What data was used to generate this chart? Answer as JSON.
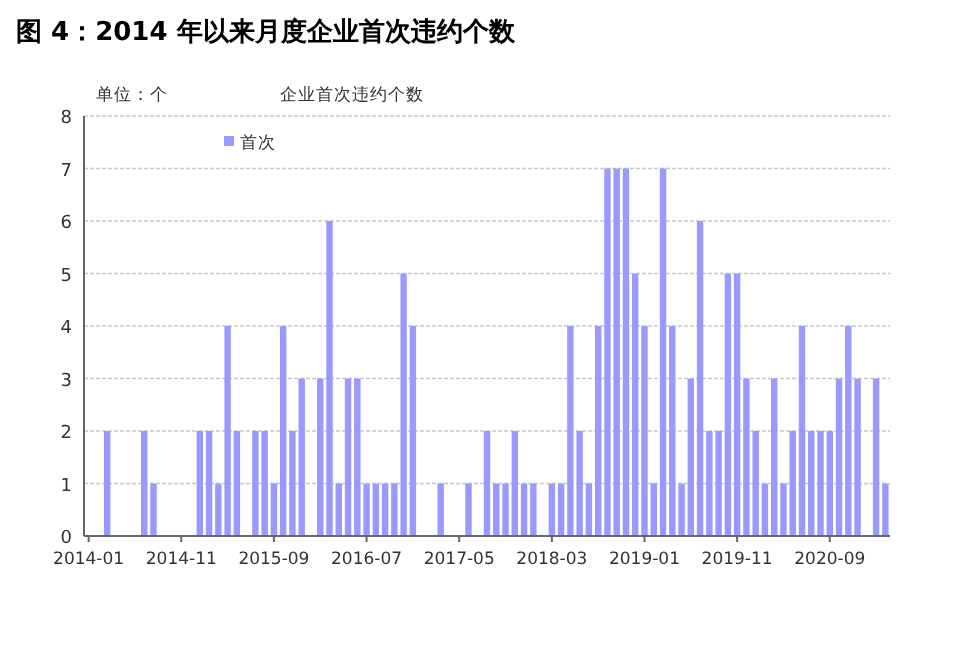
{
  "chart_data": {
    "type": "bar",
    "title": "图 4：2014 年以来月度企业首次违约个数",
    "subtitle": "企业首次违约个数",
    "ylabel": "单位：个",
    "categories": [
      "2014-01",
      null,
      null,
      null,
      null,
      null,
      null,
      null,
      null,
      null,
      "2014-11",
      null,
      null,
      null,
      null,
      null,
      null,
      null,
      null,
      null,
      "2015-09",
      null,
      null,
      null,
      null,
      null,
      null,
      null,
      null,
      null,
      "2016-07",
      null,
      null,
      null,
      null,
      null,
      null,
      null,
      null,
      null,
      "2017-05",
      null,
      null,
      null,
      null,
      null,
      null,
      null,
      null,
      null,
      "2018-03",
      null,
      null,
      null,
      null,
      null,
      null,
      null,
      null,
      null,
      "2019-01",
      null,
      null,
      null,
      null,
      null,
      null,
      null,
      null,
      null,
      "2019-11",
      null,
      null,
      null,
      null,
      null,
      null,
      null,
      null,
      null,
      "2020-09",
      null,
      null,
      null,
      null,
      null,
      null
    ],
    "series": [
      {
        "name": "首次",
        "color": "#9999ff",
        "values": [
          0,
          0,
          2,
          0,
          0,
          0,
          2,
          1,
          0,
          0,
          0,
          0,
          2,
          2,
          1,
          4,
          2,
          0,
          2,
          2,
          1,
          4,
          2,
          3,
          0,
          3,
          6,
          1,
          3,
          3,
          1,
          1,
          1,
          1,
          5,
          4,
          0,
          0,
          1,
          0,
          0,
          1,
          0,
          2,
          1,
          1,
          2,
          1,
          1,
          0,
          1,
          1,
          4,
          2,
          1,
          4,
          7,
          7,
          7,
          5,
          4,
          1,
          7,
          4,
          1,
          3,
          6,
          2,
          2,
          5,
          5,
          3,
          2,
          1,
          3,
          1,
          2,
          4,
          2,
          2,
          2,
          3,
          4,
          3,
          0,
          3,
          1
        ]
      }
    ],
    "ylim": [
      0,
      8
    ],
    "yticks": [
      0,
      1,
      2,
      3,
      4,
      5,
      6,
      7,
      8
    ],
    "grid": "y",
    "legend": "top left"
  }
}
